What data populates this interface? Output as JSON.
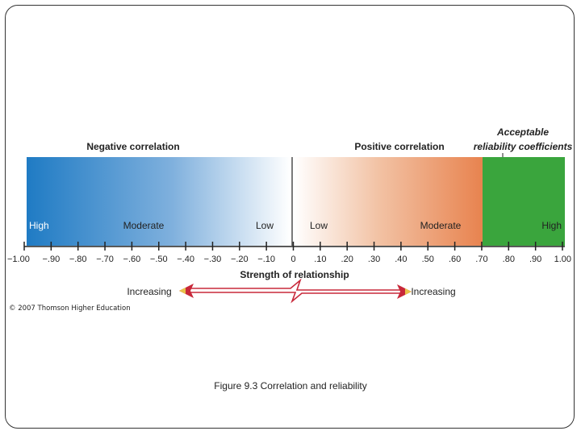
{
  "slide": {
    "copyright": "© 2007 Thomson Higher Education",
    "caption": "Figure 9.3  Correlation and reliability"
  },
  "diagram": {
    "headings": {
      "negative": "Negative correlation",
      "positive": "Positive correlation",
      "acceptable_line1": "Acceptable",
      "acceptable_line2": "reliability coefficients"
    },
    "strength_labels": {
      "neg_high": "High",
      "neg_moderate": "Moderate",
      "neg_low": "Low",
      "pos_low": "Low",
      "pos_moderate": "Moderate",
      "pos_high": "High"
    },
    "axis_title": "Strength of relationship",
    "arrow_left_label": "Increasing",
    "arrow_right_label": "Increasing",
    "axis_min": -1.0,
    "axis_max": 1.0,
    "reliability_threshold": 0.7,
    "tick_values": [
      -1.0,
      -0.9,
      -0.8,
      -0.7,
      -0.6,
      -0.5,
      -0.4,
      -0.3,
      -0.2,
      -0.1,
      0,
      0.1,
      0.2,
      0.3,
      0.4,
      0.5,
      0.6,
      0.7,
      0.8,
      0.9,
      1.0
    ],
    "tick_labels": [
      "−1.00",
      "−.90",
      "−.80",
      "−.70",
      "−.60",
      "−.50",
      "−.40",
      "−.30",
      "−.20",
      "−.10",
      "0",
      ".10",
      ".20",
      ".30",
      ".40",
      ".50",
      ".60",
      ".70",
      ".80",
      ".90",
      "1.00"
    ],
    "colors": {
      "negative": "#1f7bc4",
      "positive": "#e8834f",
      "reliable": "#3aa53d",
      "arrow": "#c8283a",
      "arrow_tip": "#e8c24a"
    }
  }
}
